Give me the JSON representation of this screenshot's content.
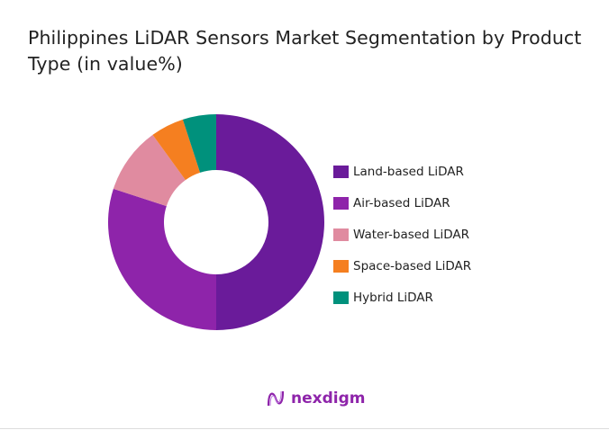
{
  "chart_data": {
    "type": "pie",
    "donut": true,
    "title": "Philippines LiDAR Sensors Market Segmentation by Product Type (in value%)",
    "categories": [
      "Land-based LiDAR",
      "Air-based LiDAR",
      "Water-based LiDAR",
      "Space-based LiDAR",
      "Hybrid LiDAR"
    ],
    "values": [
      50,
      30,
      10,
      5,
      5
    ],
    "colors": [
      "#6a1b9a",
      "#8e24aa",
      "#e08ba0",
      "#f57f20",
      "#00917c"
    ],
    "legend_position": "right"
  },
  "brand": {
    "name": "nexdigm",
    "logo_icon": "nexdigm-wave-logo"
  }
}
